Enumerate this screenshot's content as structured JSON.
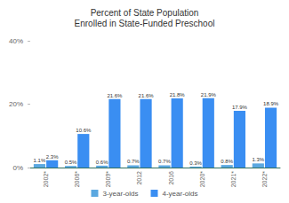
{
  "chart_data": {
    "type": "bar",
    "title": "Percent of State Population\nEnrolled in State-Funded Preschool",
    "categories": [
      "2002*",
      "2006*",
      "2009*",
      "2012",
      "2016",
      "2020*",
      "2021*",
      "2022*"
    ],
    "series": [
      {
        "name": "3-year-olds",
        "color": "#5ba8e0",
        "values": [
          1.1,
          0.5,
          0.6,
          0.7,
          0.7,
          0.3,
          0.8,
          1.3
        ],
        "value_labels": [
          "1.1%",
          "0.5%",
          "0.6%",
          "0.7%",
          "0.7%",
          "0.3%",
          "0.8%",
          "1.3%"
        ]
      },
      {
        "name": "4-year-olds",
        "color": "#3a8ef2",
        "values": [
          2.3,
          10.6,
          21.6,
          21.6,
          21.8,
          21.9,
          17.9,
          18.9
        ],
        "value_labels": [
          "2.3%",
          "10.6%",
          "21.6%",
          "21.6%",
          "21.8%",
          "21.9%",
          "17.9%",
          "18.9%"
        ]
      }
    ],
    "ylim": [
      0,
      40
    ],
    "yticks": [
      {
        "value": 0,
        "label": "0%"
      },
      {
        "value": 20,
        "label": "20%"
      },
      {
        "value": 40,
        "label": "40%"
      }
    ],
    "grid": false,
    "legend": "bottom",
    "data_labels": true
  }
}
